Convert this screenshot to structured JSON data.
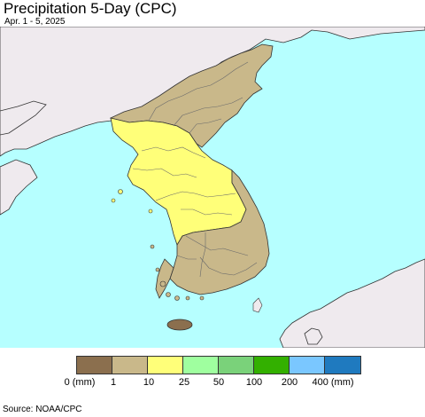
{
  "title": "Precipitation 5-Day (CPC)",
  "subtitle": "Apr. 1 - 5, 2025",
  "source": "Source: NOAA/CPC",
  "colors": {
    "water": "#b6ffff",
    "land_outside": "#efeaee",
    "border": "#333333",
    "province_line": "#6b6b6b"
  },
  "legend": {
    "swatches": [
      "#8b6f4e",
      "#c9b88a",
      "#ffff79",
      "#9fff9f",
      "#7ad27a",
      "#33b000",
      "#7ac7ff",
      "#1f7abf"
    ],
    "labels": [
      "0 (mm)",
      "1",
      "10",
      "25",
      "50",
      "100",
      "200",
      "400 (mm)"
    ]
  }
}
